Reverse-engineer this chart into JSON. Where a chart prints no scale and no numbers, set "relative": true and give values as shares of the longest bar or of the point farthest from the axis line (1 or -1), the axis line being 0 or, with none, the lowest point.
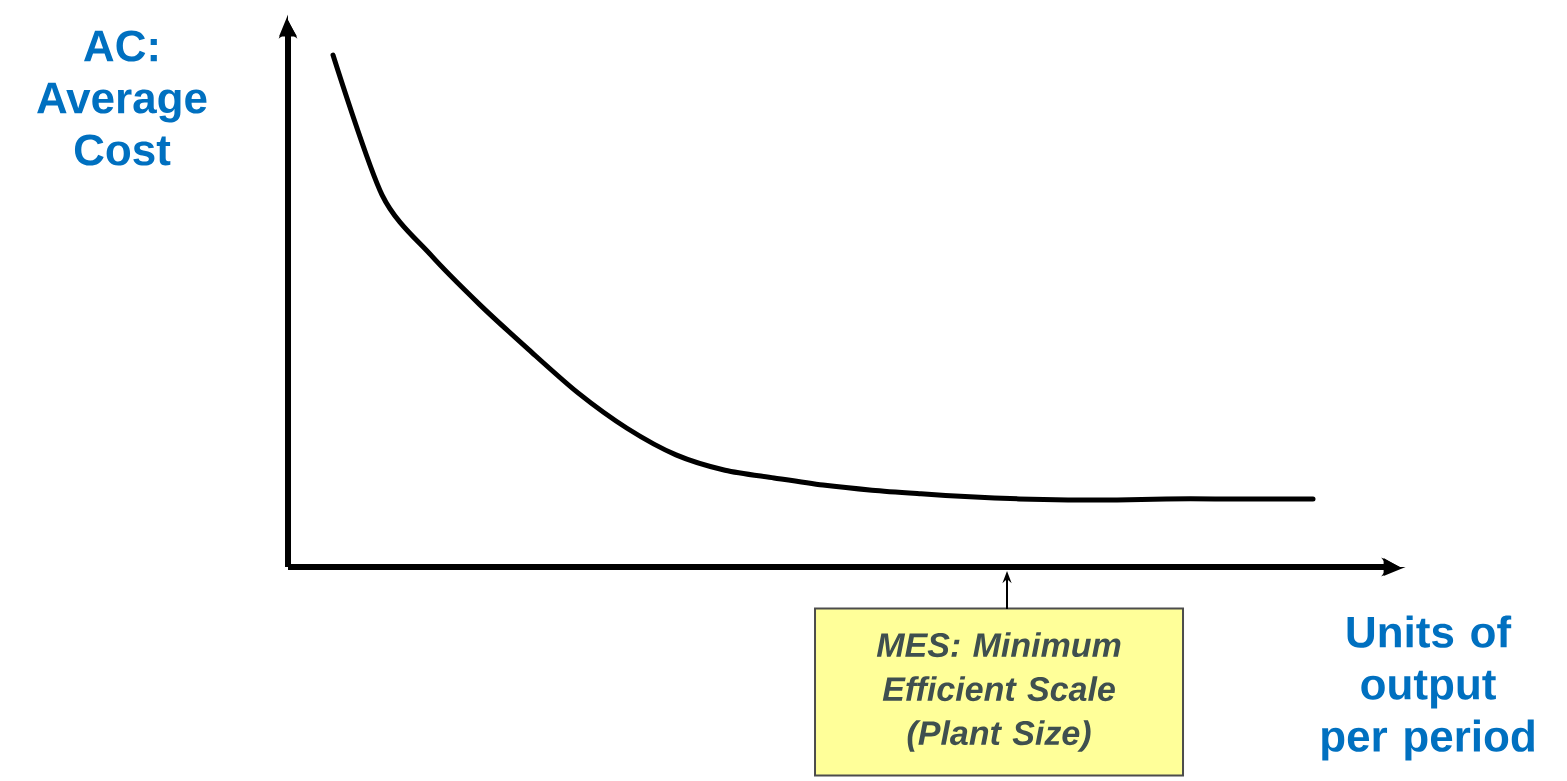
{
  "chart_data": {
    "type": "line",
    "relative": true,
    "categories": [
      null,
      null,
      null,
      null,
      null,
      null,
      null,
      null,
      null,
      null,
      null,
      null,
      null,
      null,
      null,
      null,
      null,
      null,
      null,
      null,
      null
    ],
    "values": [
      1.0,
      0.727,
      0.609,
      0.512,
      0.424,
      0.34,
      0.271,
      0.219,
      0.189,
      0.174,
      0.16,
      0.15,
      0.143,
      0.137,
      0.133,
      0.131,
      0.131,
      0.133,
      0.133,
      0.133,
      0.133
    ],
    "color": "#000000",
    "xlabel": "Units of output per period",
    "ylabel": "AC: Average Cost",
    "annotations": [
      "MES: Minimum Efficient Scale (Plant Size)"
    ]
  }
}
